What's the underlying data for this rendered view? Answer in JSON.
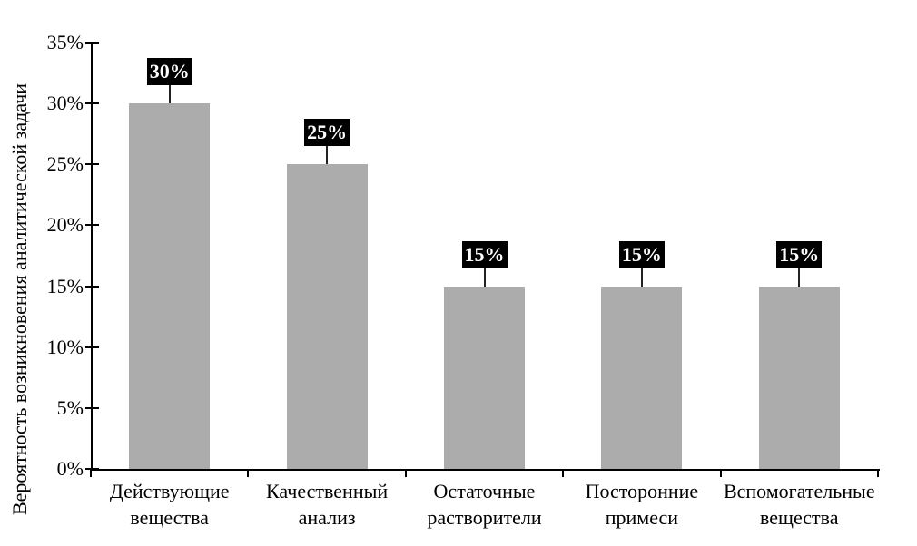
{
  "chart_data": {
    "type": "bar",
    "title": "",
    "xlabel": "",
    "ylabel": "Вероятность возникновения аналитической задачи",
    "ylim": [
      0,
      35
    ],
    "ytick_labels": [
      "0%",
      "5%",
      "10%",
      "15%",
      "20%",
      "25%",
      "30%",
      "35%"
    ],
    "ytick_values": [
      0,
      5,
      10,
      15,
      20,
      25,
      30,
      35
    ],
    "categories": [
      [
        "Действующие",
        "вещества"
      ],
      [
        "Качественный",
        "анализ"
      ],
      [
        "Остаточные",
        "растворители"
      ],
      [
        "Посторонние",
        "примеси"
      ],
      [
        "Вспомогательные",
        "вещества"
      ]
    ],
    "values": [
      30,
      25,
      15,
      15,
      15
    ],
    "data_labels": [
      "30%",
      "25%",
      "15%",
      "15%",
      "15%"
    ],
    "grid": false,
    "legend": "none",
    "colors": {
      "bar": "#ACACAC",
      "value_label_bg": "#000000",
      "value_label_text": "#FFFFFF",
      "axis": "#000000"
    }
  }
}
